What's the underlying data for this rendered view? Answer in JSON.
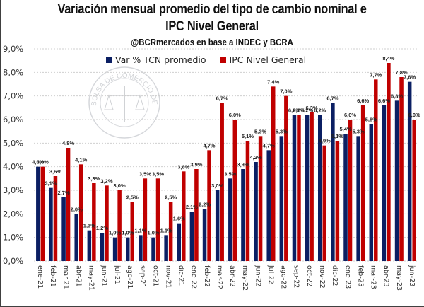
{
  "chart_data": {
    "type": "bar",
    "title_line1": "Variación mensual promedio del tipo de cambio nominal e",
    "title_line2": "IPC Nivel General",
    "subtitle": "@BCRmercados en base a INDEC y BCRA",
    "xlabel": "",
    "ylabel": "",
    "ylim": [
      0,
      9
    ],
    "yticks": [
      "0,0%",
      "1,0%",
      "2,0%",
      "3,0%",
      "4,0%",
      "5,0%",
      "6,0%",
      "7,0%",
      "8,0%",
      "9,0%"
    ],
    "grid": true,
    "legend_position": "top-center",
    "categories": [
      "ene-21",
      "feb-21",
      "mar-21",
      "abr-21",
      "may-21",
      "jun-21",
      "jul-21",
      "ago-21",
      "sep-21",
      "oct-21",
      "nov-21",
      "dic-21",
      "ene-22",
      "feb-22",
      "mar-22",
      "abr-22",
      "may-22",
      "jun-22",
      "jul-22",
      "ago-22",
      "sep-22",
      "oct-22",
      "nov-22",
      "dic-22",
      "ene-23",
      "feb-23",
      "mar-23",
      "abr-23",
      "may-23",
      "jun-23"
    ],
    "series": [
      {
        "name": "Var % TCN promedio",
        "color": "#0b1f63",
        "values": [
          4.0,
          3.1,
          2.7,
          2.0,
          1.3,
          1.2,
          1.0,
          1.0,
          1.1,
          1.0,
          1.1,
          1.6,
          2.1,
          2.2,
          3.0,
          3.5,
          3.9,
          4.2,
          4.7,
          5.3,
          6.2,
          6.2,
          6.2,
          6.7,
          5.4,
          5.3,
          5.8,
          6.6,
          6.8,
          7.6
        ]
      },
      {
        "name": "IPC Nivel General",
        "color": "#c00000",
        "values": [
          4.0,
          3.6,
          4.8,
          4.1,
          3.3,
          3.2,
          3.0,
          2.5,
          3.5,
          3.5,
          2.5,
          3.8,
          3.9,
          4.7,
          6.7,
          6.0,
          5.1,
          5.3,
          7.4,
          7.0,
          6.2,
          6.3,
          4.9,
          5.1,
          6.0,
          6.6,
          7.7,
          8.4,
          7.8,
          6.0
        ]
      }
    ]
  },
  "watermark": "BOLSA DE COMERCIO DE ROSARIO"
}
